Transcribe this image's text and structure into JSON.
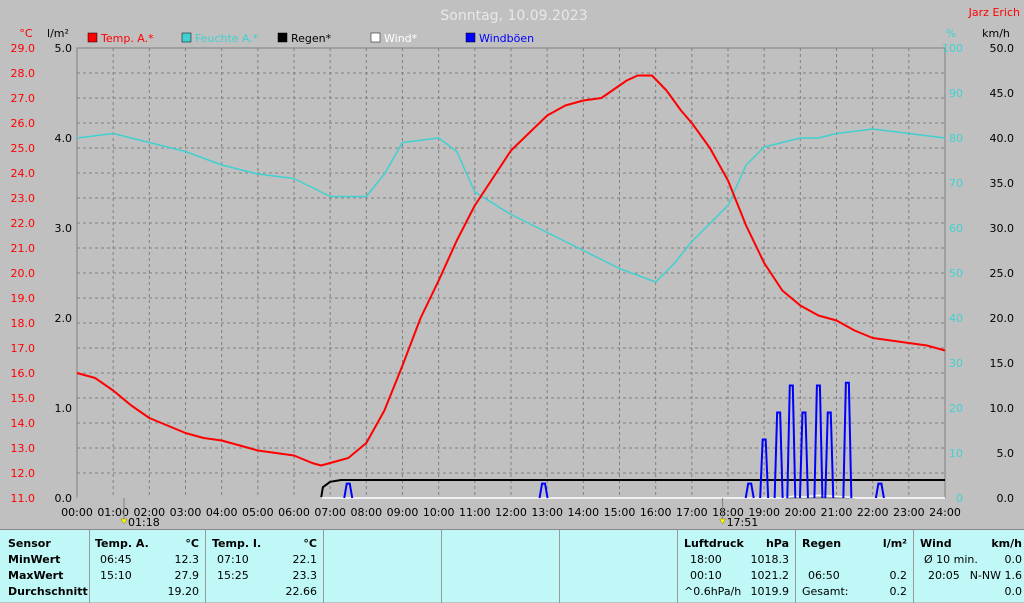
{
  "header": {
    "title": "Sonntag, 10.09.2023",
    "author": "Jarz Erich"
  },
  "colors": {
    "temp": "#ff0000",
    "humidity": "#40d0d0",
    "rain": "#000000",
    "wind": "#ffffff",
    "gust": "#0000ff",
    "background": "#c0c0c0",
    "panel": "#c0f8f8"
  },
  "chart_data": {
    "type": "line",
    "title": "Sonntag, 10.09.2023",
    "x_labels": [
      "00:00",
      "01:00",
      "02:00",
      "03:00",
      "04:00",
      "05:00",
      "06:00",
      "07:00",
      "08:00",
      "09:00",
      "10:00",
      "11:00",
      "12:00",
      "13:00",
      "14:00",
      "15:00",
      "16:00",
      "17:00",
      "18:00",
      "19:00",
      "20:00",
      "21:00",
      "22:00",
      "23:00",
      "24:00"
    ],
    "axes": {
      "temp": {
        "unit": "°C",
        "min": 11.0,
        "max": 29.0,
        "ticks": [
          "11.0",
          "12.0",
          "13.0",
          "14.0",
          "15.0",
          "16.0",
          "17.0",
          "18.0",
          "19.0",
          "20.0",
          "21.0",
          "22.0",
          "23.0",
          "24.0",
          "25.0",
          "26.0",
          "27.0",
          "28.0",
          "29.0"
        ]
      },
      "rain": {
        "unit": "l/m²",
        "min": 0,
        "max": 5,
        "ticks": [
          "0.0",
          "1.0",
          "2.0",
          "3.0",
          "4.0",
          "5.0"
        ]
      },
      "humidity": {
        "unit": "%",
        "min": 0,
        "max": 100,
        "ticks": [
          "0",
          "10",
          "20",
          "30",
          "40",
          "50",
          "60",
          "70",
          "80",
          "90",
          "100"
        ]
      },
      "wind": {
        "unit": "km/h",
        "min": 0,
        "max": 50,
        "ticks": [
          "0.0",
          "5.0",
          "10.0",
          "15.0",
          "20.0",
          "25.0",
          "30.0",
          "35.0",
          "40.0",
          "45.0",
          "50.0"
        ]
      }
    },
    "grid": true,
    "legend": [
      {
        "name": "Temp. A.*",
        "color": "#ff0000"
      },
      {
        "name": "Feuchte A.*",
        "color": "#40d0d0"
      },
      {
        "name": "Regen*",
        "color": "#000000"
      },
      {
        "name": "Wind*",
        "color": "#ffffff"
      },
      {
        "name": "Windböen",
        "color": "#0000ff"
      }
    ],
    "series": [
      {
        "key": "temp",
        "axis": "temp",
        "points": [
          [
            0,
            16.0
          ],
          [
            0.5,
            15.8
          ],
          [
            1,
            15.3
          ],
          [
            1.5,
            14.7
          ],
          [
            2,
            14.2
          ],
          [
            2.5,
            13.9
          ],
          [
            3,
            13.6
          ],
          [
            3.5,
            13.4
          ],
          [
            4,
            13.3
          ],
          [
            4.5,
            13.1
          ],
          [
            5,
            12.9
          ],
          [
            5.5,
            12.8
          ],
          [
            6,
            12.7
          ],
          [
            6.5,
            12.4
          ],
          [
            6.75,
            12.3
          ],
          [
            7,
            12.4
          ],
          [
            7.5,
            12.6
          ],
          [
            8,
            13.2
          ],
          [
            8.5,
            14.5
          ],
          [
            9,
            16.3
          ],
          [
            9.5,
            18.2
          ],
          [
            10,
            19.7
          ],
          [
            10.5,
            21.3
          ],
          [
            11,
            22.7
          ],
          [
            11.5,
            23.8
          ],
          [
            12,
            24.9
          ],
          [
            12.5,
            25.6
          ],
          [
            13,
            26.3
          ],
          [
            13.5,
            26.7
          ],
          [
            14,
            26.9
          ],
          [
            14.5,
            27.0
          ],
          [
            15,
            27.5
          ],
          [
            15.2,
            27.7
          ],
          [
            15.5,
            27.9
          ],
          [
            15.9,
            27.9
          ],
          [
            16.3,
            27.3
          ],
          [
            16.7,
            26.5
          ],
          [
            17,
            26.0
          ],
          [
            17.5,
            25.0
          ],
          [
            18,
            23.7
          ],
          [
            18.5,
            21.9
          ],
          [
            19,
            20.4
          ],
          [
            19.5,
            19.3
          ],
          [
            20,
            18.7
          ],
          [
            20.5,
            18.3
          ],
          [
            21,
            18.1
          ],
          [
            21.5,
            17.7
          ],
          [
            22,
            17.4
          ],
          [
            22.5,
            17.3
          ],
          [
            23,
            17.2
          ],
          [
            23.5,
            17.1
          ],
          [
            24,
            16.9
          ]
        ]
      },
      {
        "key": "humidity",
        "axis": "humidity",
        "points": [
          [
            0,
            80
          ],
          [
            1,
            81
          ],
          [
            2,
            79
          ],
          [
            3,
            77
          ],
          [
            4,
            74
          ],
          [
            5,
            72
          ],
          [
            6,
            71
          ],
          [
            7,
            67
          ],
          [
            8,
            67
          ],
          [
            8.5,
            72
          ],
          [
            9,
            79
          ],
          [
            10,
            80
          ],
          [
            10.5,
            77
          ],
          [
            11,
            68
          ],
          [
            12,
            63
          ],
          [
            13,
            59
          ],
          [
            14,
            55
          ],
          [
            15,
            51
          ],
          [
            16,
            48
          ],
          [
            16.5,
            52
          ],
          [
            17,
            57
          ],
          [
            18,
            65
          ],
          [
            18.5,
            74
          ],
          [
            19,
            78
          ],
          [
            19.5,
            79
          ],
          [
            20,
            80
          ],
          [
            20.5,
            80
          ],
          [
            21,
            81
          ],
          [
            22,
            82
          ],
          [
            23,
            81
          ],
          [
            24,
            80
          ]
        ]
      },
      {
        "key": "rain",
        "axis": "rain",
        "points": [
          [
            0,
            0
          ],
          [
            6.75,
            0
          ],
          [
            6.8,
            0.12
          ],
          [
            7,
            0.18
          ],
          [
            7.3,
            0.2
          ],
          [
            7.6,
            0.2
          ],
          [
            8,
            0.2
          ],
          [
            24,
            0.2
          ]
        ]
      },
      {
        "key": "wind",
        "axis": "wind",
        "points": [
          [
            0,
            0
          ],
          [
            19.5,
            0
          ],
          [
            19.8,
            0.2
          ],
          [
            20.1,
            0.1
          ],
          [
            20.5,
            0.3
          ],
          [
            20.9,
            0.2
          ],
          [
            21.3,
            0.1
          ],
          [
            21.6,
            0
          ],
          [
            24,
            0
          ]
        ]
      },
      {
        "key": "gust",
        "axis": "wind",
        "spikes": [
          [
            7.5,
            1.6
          ],
          [
            12.9,
            1.6
          ],
          [
            18.6,
            1.6
          ],
          [
            19.0,
            6.5
          ],
          [
            19.4,
            9.5
          ],
          [
            19.75,
            12.5
          ],
          [
            20.1,
            9.5
          ],
          [
            20.5,
            12.5
          ],
          [
            20.8,
            9.5
          ],
          [
            21.3,
            12.8
          ],
          [
            22.2,
            1.6
          ]
        ]
      }
    ],
    "markers": [
      {
        "time": "01:18",
        "hour": 1.3
      },
      {
        "time": "17:51",
        "hour": 17.85
      }
    ]
  },
  "panel": {
    "sensor": {
      "h1": "Sensor",
      "rows": [
        "MinWert",
        "MaxWert",
        "Durchschnitt"
      ]
    },
    "tempA": {
      "title": "Temp. A.",
      "unit": "°C",
      "min_time": "06:45",
      "min_val": "12.3",
      "max_time": "15:10",
      "max_val": "27.9",
      "avg": "19.20"
    },
    "tempI": {
      "title": "Temp. I.",
      "unit": "°C",
      "min_time": "07:10",
      "min_val": "22.1",
      "max_time": "15:25",
      "max_val": "23.3",
      "avg": "22.66"
    },
    "pressure": {
      "title": "Luftdruck",
      "unit": "hPa",
      "r1_time": "18:00",
      "r1_val": "1018.3",
      "r2_time": "00:10",
      "r2_val": "1021.2",
      "r3_time": "^0.6hPa/h",
      "r3_val": "1019.9"
    },
    "rain": {
      "title": "Regen",
      "unit": "l/m²",
      "r2_time": "06:50",
      "r2_val": "0.2",
      "r3_label": "Gesamt:",
      "r3_val": "0.2"
    },
    "wind": {
      "title": "Wind",
      "unit": "km/h",
      "r1_label": "Ø 10 min.",
      "r1_val": "0.0",
      "r2_time": "20:05",
      "r2_label": "N-NW 1.6",
      "r3_val": "0.0"
    }
  }
}
